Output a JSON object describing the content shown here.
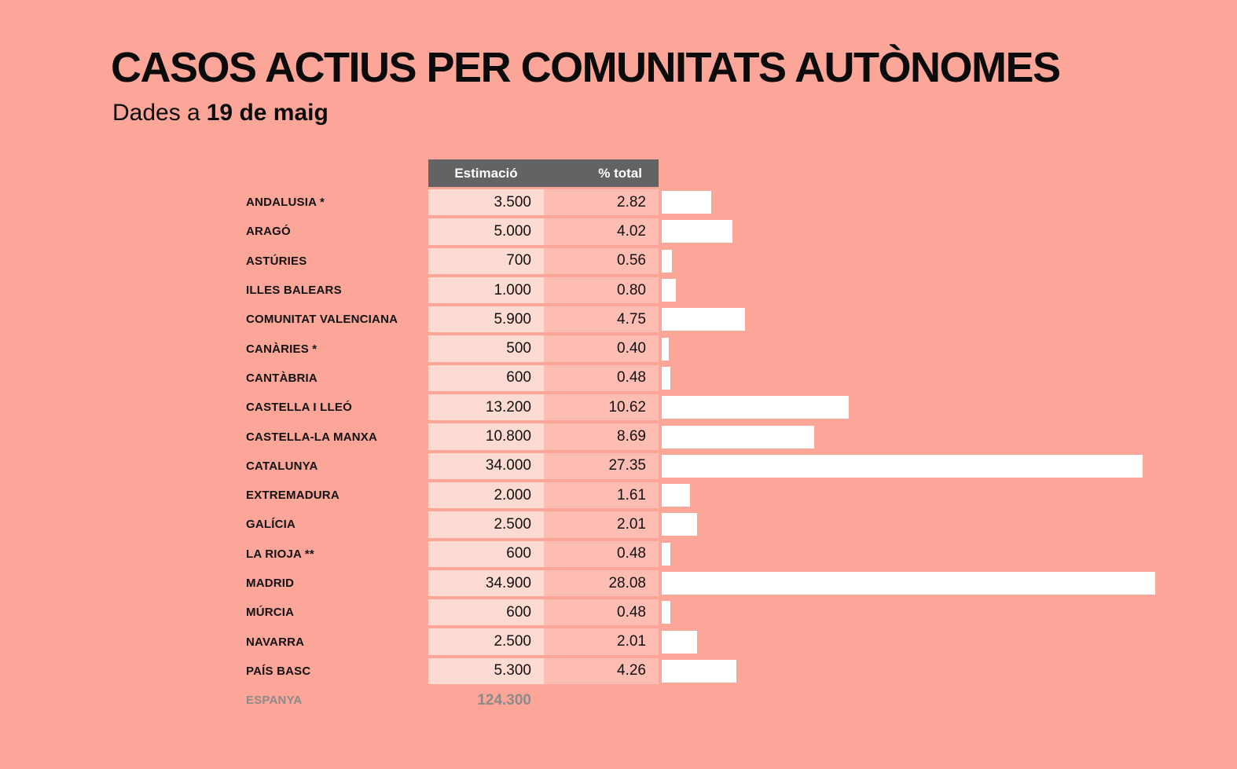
{
  "page": {
    "title": "CASOS ACTIUS PER COMUNITATS AUTÒNOMES",
    "subtitle_prefix": "Dades a",
    "subtitle_date": "19 de maig"
  },
  "table": {
    "headers": {
      "estimation": "Estimació",
      "percent": "% total"
    },
    "rows": [
      {
        "label": "ANDALUSIA *",
        "estimation": "3.500",
        "percent": "2.82"
      },
      {
        "label": "ARAGÓ",
        "estimation": "5.000",
        "percent": "4.02"
      },
      {
        "label": "ASTÚRIES",
        "estimation": "700",
        "percent": "0.56"
      },
      {
        "label": "ILLES BALEARS",
        "estimation": "1.000",
        "percent": "0.80"
      },
      {
        "label": "COMUNITAT VALENCIANA",
        "estimation": "5.900",
        "percent": "4.75"
      },
      {
        "label": "CANÀRIES *",
        "estimation": "500",
        "percent": "0.40"
      },
      {
        "label": "CANTÀBRIA",
        "estimation": "600",
        "percent": "0.48"
      },
      {
        "label": "CASTELLA I LLEÓ",
        "estimation": "13.200",
        "percent": "10.62"
      },
      {
        "label": "CASTELLA-LA MANXA",
        "estimation": "10.800",
        "percent": "8.69"
      },
      {
        "label": "CATALUNYA",
        "estimation": "34.000",
        "percent": "27.35"
      },
      {
        "label": "EXTREMADURA",
        "estimation": "2.000",
        "percent": "1.61"
      },
      {
        "label": "GALÍCIA",
        "estimation": "2.500",
        "percent": "2.01"
      },
      {
        "label": "LA RIOJA **",
        "estimation": "600",
        "percent": "0.48"
      },
      {
        "label": "MADRID",
        "estimation": "34.900",
        "percent": "28.08"
      },
      {
        "label": "MÚRCIA",
        "estimation": "600",
        "percent": "0.48"
      },
      {
        "label": "NAVARRA",
        "estimation": "2.500",
        "percent": "2.01"
      },
      {
        "label": "PAÍS BASC",
        "estimation": "5.300",
        "percent": "4.26"
      }
    ],
    "total_row": {
      "label": "ESPANYA",
      "estimation": "124.300"
    }
  },
  "colors": {
    "background": "#FCA599",
    "cell_estimation": "#FDDAD2",
    "cell_percent": "#FDBDB3",
    "header_bg": "#636365",
    "bar": "#FFFFFF",
    "text": "#111111",
    "total_text": "#8D8B89"
  },
  "chart_data": {
    "type": "bar",
    "orientation": "horizontal",
    "title": "CASOS ACTIUS PER COMUNITATS AUTÒNOMES",
    "subtitle": "Dades a 19 de maig",
    "categories": [
      "ANDALUSIA *",
      "ARAGÓ",
      "ASTÚRIES",
      "ILLES BALEARS",
      "COMUNITAT VALENCIANA",
      "CANÀRIES *",
      "CANTÀBRIA",
      "CASTELLA I LLEÓ",
      "CASTELLA-LA MANXA",
      "CATALUNYA",
      "EXTREMADURA",
      "GALÍCIA",
      "LA RIOJA **",
      "MADRID",
      "MÚRCIA",
      "NAVARRA",
      "PAÍS BASC"
    ],
    "series": [
      {
        "name": "Estimació",
        "values": [
          3500,
          5000,
          700,
          1000,
          5900,
          500,
          600,
          13200,
          10800,
          34000,
          2000,
          2500,
          600,
          34900,
          600,
          2500,
          5300
        ]
      },
      {
        "name": "% total",
        "values": [
          2.82,
          4.02,
          0.56,
          0.8,
          4.75,
          0.4,
          0.48,
          10.62,
          8.69,
          27.35,
          1.61,
          2.01,
          0.48,
          28.08,
          0.48,
          2.01,
          4.26
        ]
      }
    ],
    "bars_encode": "% total",
    "xlim": [
      0,
      28.08
    ],
    "total": {
      "label": "ESPANYA",
      "estimation": 124300
    },
    "legend": "none",
    "grid": false
  }
}
